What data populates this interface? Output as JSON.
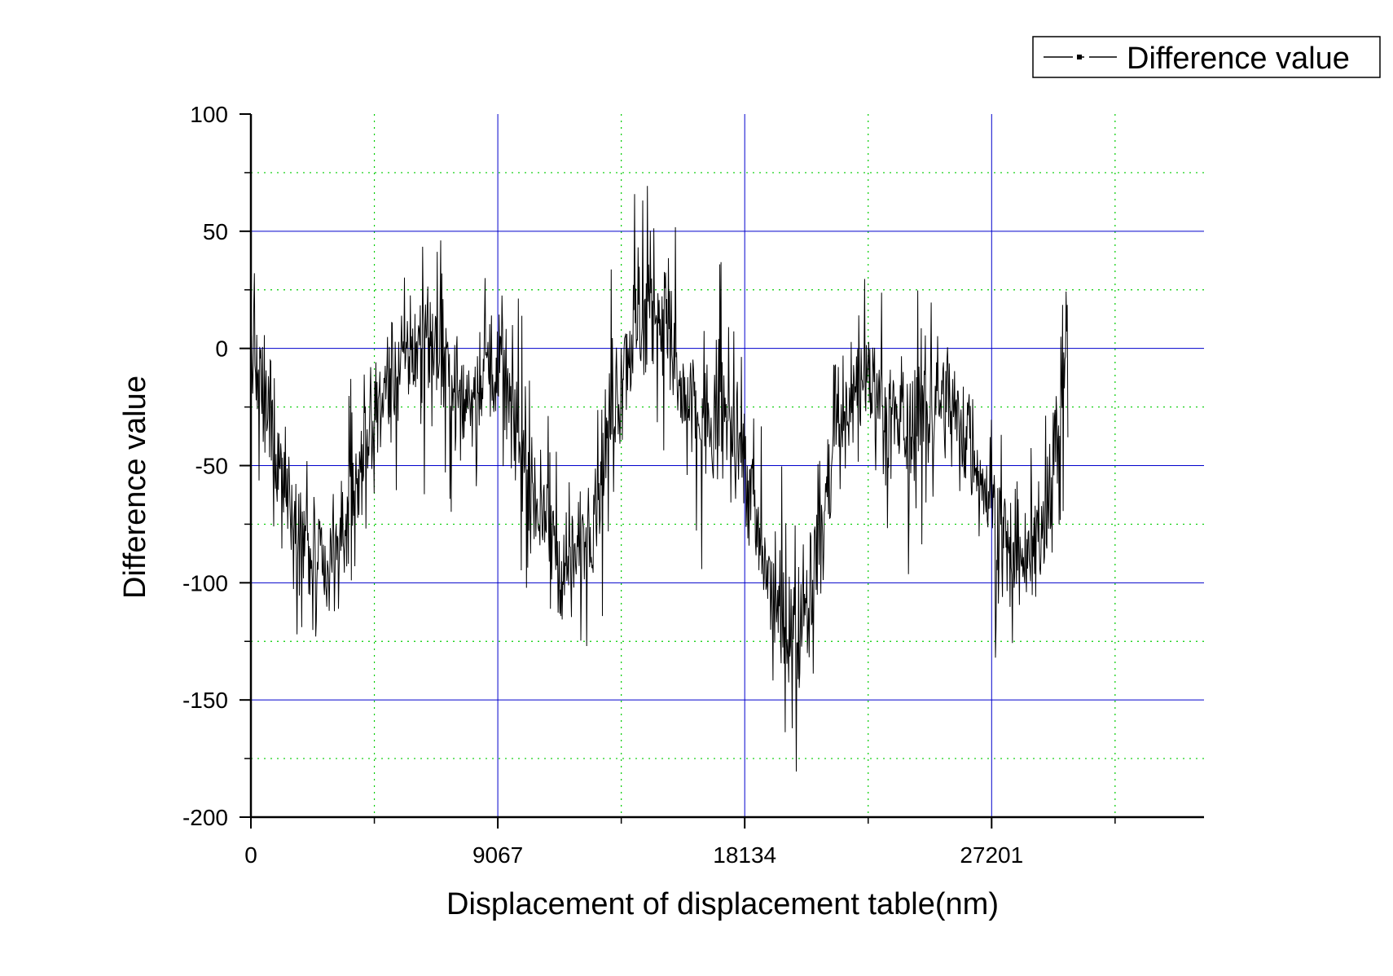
{
  "chart_data": {
    "type": "line",
    "xlabel": "Displacement of displacement table(nm)",
    "ylabel": "Difference value",
    "xlim": [
      0,
      35000
    ],
    "ylim": [
      -200,
      100
    ],
    "x_major_ticks": [
      0,
      9067,
      18134,
      27201
    ],
    "x_minor_ticks": [
      4533.5,
      13600.5,
      22667.5,
      31734.5
    ],
    "y_major_ticks": [
      -200,
      -150,
      -100,
      -50,
      0,
      50,
      100
    ],
    "y_minor_ticks": [
      -175,
      -125,
      -75,
      -25,
      25,
      75
    ],
    "grid": {
      "major": true,
      "minor": true,
      "major_color": "#0000cc",
      "minor_color": "#00cc00"
    },
    "legend": {
      "position": "top-right",
      "entries": [
        "Difference value"
      ]
    },
    "line_color": "#000000",
    "series": [
      {
        "name": "Difference value",
        "x_start": 0,
        "x_end": 30000,
        "approx_trend": [
          [
            0,
            0
          ],
          [
            500,
            -25
          ],
          [
            1500,
            -65
          ],
          [
            2000,
            -85
          ],
          [
            2700,
            -100
          ],
          [
            3400,
            -80
          ],
          [
            4000,
            -50
          ],
          [
            4700,
            -25
          ],
          [
            5500,
            -5
          ],
          [
            6500,
            5
          ],
          [
            7200,
            -10
          ],
          [
            7800,
            -25
          ],
          [
            8300,
            -15
          ],
          [
            8800,
            0
          ],
          [
            9400,
            -20
          ],
          [
            10000,
            -45
          ],
          [
            10500,
            -65
          ],
          [
            11000,
            -85
          ],
          [
            11700,
            -95
          ],
          [
            12300,
            -80
          ],
          [
            12800,
            -55
          ],
          [
            13300,
            -20
          ],
          [
            14000,
            5
          ],
          [
            14600,
            20
          ],
          [
            15200,
            10
          ],
          [
            15800,
            -20
          ],
          [
            16500,
            -30
          ],
          [
            17000,
            -35
          ],
          [
            17500,
            -30
          ],
          [
            18000,
            -40
          ],
          [
            18400,
            -65
          ],
          [
            18800,
            -90
          ],
          [
            19300,
            -110
          ],
          [
            19700,
            -125
          ],
          [
            20200,
            -115
          ],
          [
            20700,
            -90
          ],
          [
            21200,
            -60
          ],
          [
            21600,
            -35
          ],
          [
            22000,
            -20
          ],
          [
            22600,
            -10
          ],
          [
            23300,
            -25
          ],
          [
            24000,
            -35
          ],
          [
            24800,
            -25
          ],
          [
            25400,
            -20
          ],
          [
            26000,
            -30
          ],
          [
            26600,
            -45
          ],
          [
            27000,
            -60
          ],
          [
            27500,
            -75
          ],
          [
            27800,
            -90
          ],
          [
            28400,
            -95
          ],
          [
            28900,
            -80
          ],
          [
            29300,
            -60
          ],
          [
            29600,
            -35
          ],
          [
            29800,
            -10
          ],
          [
            30000,
            10
          ]
        ],
        "noise_amplitude": 22,
        "sample_count": 1400
      }
    ]
  }
}
